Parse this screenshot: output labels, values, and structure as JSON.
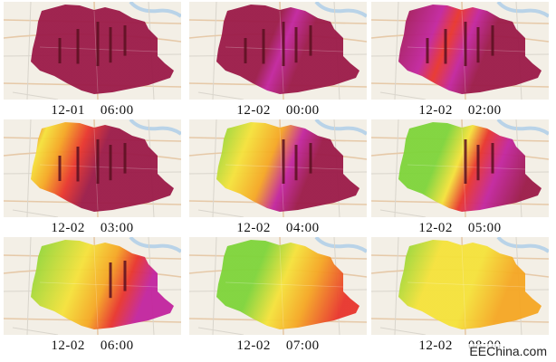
{
  "panels": [
    {
      "label": "12-01    06:00",
      "stage": 0
    },
    {
      "label": "12-02    00:00",
      "stage": 1
    },
    {
      "label": "12-02    02:00",
      "stage": 2
    },
    {
      "label": "12-02    03:00",
      "stage": 3
    },
    {
      "label": "12-02    04:00",
      "stage": 4
    },
    {
      "label": "12-02    05:00",
      "stage": 5
    },
    {
      "label": "12-02    06:00",
      "stage": 6
    },
    {
      "label": "12-02    07:00",
      "stage": 7
    },
    {
      "label": "12-02    08:00",
      "stage": 8
    }
  ],
  "watermark": "EEChina.com",
  "colors": {
    "background": "#ffffff",
    "map_land": "#f3efe6",
    "road_primary": "#e6c9a8",
    "road_secondary": "#d9d5cc",
    "water": "#b9d3e8",
    "crimson": "#9b1a48",
    "magenta": "#c2249e",
    "red": "#e8342c",
    "orange": "#f5a623",
    "yellow": "#f5e23a",
    "green": "#7ed43a",
    "tower": "#5a1020"
  }
}
